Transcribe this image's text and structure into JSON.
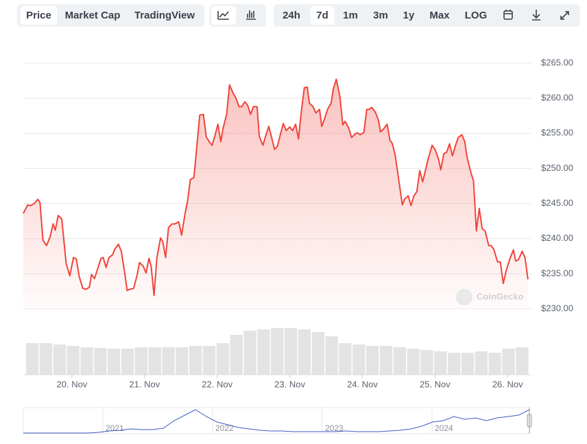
{
  "toolbar": {
    "views": [
      "Price",
      "Market Cap",
      "TradingView"
    ],
    "active_view": "Price",
    "ranges": [
      "24h",
      "7d",
      "1m",
      "3m",
      "1y",
      "Max",
      "LOG"
    ],
    "active_range": "7d"
  },
  "chart_data": {
    "type": "line",
    "color": "#f0433a",
    "area": true,
    "grid": true,
    "watermark": "CoinGecko",
    "xlim": [
      19.33,
      26.3
    ],
    "ylim": [
      230,
      265
    ],
    "xticks": [
      {
        "value": 20,
        "label": "20. Nov"
      },
      {
        "value": 21,
        "label": "21. Nov"
      },
      {
        "value": 22,
        "label": "22. Nov"
      },
      {
        "value": 23,
        "label": "23. Nov"
      },
      {
        "value": 24,
        "label": "24. Nov"
      },
      {
        "value": 25,
        "label": "25. Nov"
      },
      {
        "value": 26,
        "label": "26. Nov"
      }
    ],
    "yticks": [
      {
        "value": 230,
        "label": "$230.00"
      },
      {
        "value": 235,
        "label": "$235.00"
      },
      {
        "value": 240,
        "label": "$240.00"
      },
      {
        "value": 245,
        "label": "$245.00"
      },
      {
        "value": 250,
        "label": "$250.00"
      },
      {
        "value": 255,
        "label": "$255.00"
      },
      {
        "value": 260,
        "label": "$260.00"
      },
      {
        "value": 265,
        "label": "$265.00"
      }
    ],
    "x": [
      19.33,
      19.39,
      19.43,
      19.48,
      19.53,
      19.56,
      19.6,
      19.65,
      19.7,
      19.74,
      19.77,
      19.81,
      19.86,
      19.92,
      19.97,
      20.02,
      20.06,
      20.1,
      20.15,
      20.2,
      20.24,
      20.27,
      20.31,
      20.36,
      20.4,
      20.43,
      20.47,
      20.51,
      20.56,
      20.59,
      20.64,
      20.68,
      20.73,
      20.76,
      20.8,
      20.85,
      20.9,
      20.93,
      20.98,
      21.02,
      21.06,
      21.09,
      21.13,
      21.17,
      21.22,
      21.25,
      21.29,
      21.33,
      21.38,
      21.42,
      21.47,
      21.51,
      21.56,
      21.59,
      21.63,
      21.68,
      21.72,
      21.76,
      21.81,
      21.85,
      21.89,
      21.93,
      21.97,
      22.01,
      22.05,
      22.08,
      22.13,
      22.17,
      22.22,
      22.26,
      22.3,
      22.34,
      22.38,
      22.42,
      22.46,
      22.5,
      22.55,
      22.58,
      22.63,
      22.67,
      22.71,
      22.75,
      22.79,
      22.83,
      22.87,
      22.91,
      22.95,
      23.0,
      23.04,
      23.08,
      23.12,
      23.16,
      23.2,
      23.24,
      23.27,
      23.32,
      23.36,
      23.41,
      23.44,
      23.48,
      23.52,
      23.57,
      23.6,
      23.64,
      23.69,
      23.73,
      23.76,
      23.81,
      23.85,
      23.9,
      23.93,
      23.97,
      24.02,
      24.06,
      24.09,
      24.13,
      24.18,
      24.22,
      24.25,
      24.29,
      24.34,
      24.38,
      24.41,
      24.45,
      24.49,
      24.55,
      24.58,
      24.63,
      24.67,
      24.71,
      24.75,
      24.79,
      24.83,
      24.88,
      24.91,
      24.96,
      25.0,
      25.05,
      25.08,
      25.12,
      25.16,
      25.2,
      25.24,
      25.28,
      25.32,
      25.37,
      25.41,
      25.44,
      25.49,
      25.53,
      25.57,
      25.61,
      25.65,
      25.69,
      25.74,
      25.77,
      25.81,
      25.86,
      25.9,
      25.94,
      25.98,
      26.03,
      26.08,
      26.11,
      26.15,
      26.2,
      26.24,
      26.28
    ],
    "values": [
      243.6,
      244.8,
      244.7,
      245.0,
      245.6,
      245.1,
      239.8,
      239.0,
      240.3,
      242.1,
      241.2,
      243.3,
      242.8,
      236.4,
      234.7,
      237.3,
      237.1,
      234.6,
      232.9,
      232.8,
      233.1,
      234.9,
      234.3,
      235.9,
      237.2,
      237.3,
      235.9,
      237.3,
      237.7,
      238.5,
      239.2,
      238.2,
      234.9,
      232.6,
      232.8,
      232.9,
      234.9,
      236.6,
      236.1,
      235.1,
      237.2,
      236.1,
      231.9,
      237.3,
      240.1,
      239.6,
      237.3,
      241.6,
      242.1,
      242.1,
      242.4,
      240.5,
      243.7,
      245.2,
      248.4,
      248.7,
      253.2,
      257.6,
      257.7,
      254.5,
      253.8,
      253.3,
      254.7,
      256.3,
      253.8,
      255.7,
      257.7,
      261.9,
      260.7,
      260.0,
      258.8,
      258.8,
      259.5,
      259.0,
      257.7,
      258.8,
      258.8,
      254.6,
      253.3,
      254.7,
      256.0,
      254.4,
      252.7,
      253.2,
      254.8,
      256.4,
      255.4,
      255.9,
      255.4,
      256.3,
      254.2,
      258.2,
      261.5,
      261.6,
      259.3,
      258.8,
      257.9,
      258.4,
      256.0,
      257.1,
      258.4,
      259.3,
      261.3,
      262.7,
      260.3,
      256.2,
      256.7,
      255.8,
      254.4,
      254.9,
      255.1,
      254.8,
      255.1,
      258.4,
      258.4,
      258.7,
      258.0,
      256.9,
      255.2,
      255.6,
      256.3,
      254.0,
      253.6,
      252.0,
      249.1,
      244.8,
      245.6,
      246.1,
      244.7,
      246.1,
      246.7,
      249.7,
      248.1,
      250.2,
      251.5,
      253.3,
      252.7,
      251.3,
      249.8,
      252.1,
      252.3,
      253.5,
      251.8,
      253.2,
      254.4,
      254.8,
      253.8,
      251.7,
      249.6,
      248.2,
      241.1,
      244.3,
      241.4,
      241.1,
      239.0,
      239.0,
      238.5,
      236.7,
      236.7,
      233.6,
      235.4,
      237.1,
      238.4,
      236.8,
      237.0,
      238.2,
      237.3,
      234.2
    ]
  },
  "volume": {
    "color": "#e3e3e3",
    "values": [
      46,
      46,
      44,
      42,
      40,
      39,
      38,
      38,
      40,
      40,
      40,
      40,
      42,
      42,
      46,
      58,
      64,
      66,
      68,
      68,
      66,
      62,
      56,
      46,
      44,
      42,
      42,
      40,
      38,
      36,
      34,
      32,
      32,
      34,
      32,
      38,
      40
    ]
  },
  "navigator": {
    "labels": [
      "2021",
      "2022",
      "2023",
      "2024"
    ],
    "color": "#3d5bc4",
    "values": [
      0,
      0,
      0,
      0,
      0,
      0,
      0,
      1,
      3,
      4,
      6,
      5,
      5,
      7,
      18,
      26,
      34,
      24,
      16,
      12,
      8,
      6,
      4,
      3,
      3,
      2,
      2,
      2,
      2,
      2,
      3,
      2,
      2,
      2,
      3,
      4,
      6,
      10,
      16,
      18,
      24,
      20,
      22,
      18,
      22,
      24,
      26,
      34
    ]
  }
}
